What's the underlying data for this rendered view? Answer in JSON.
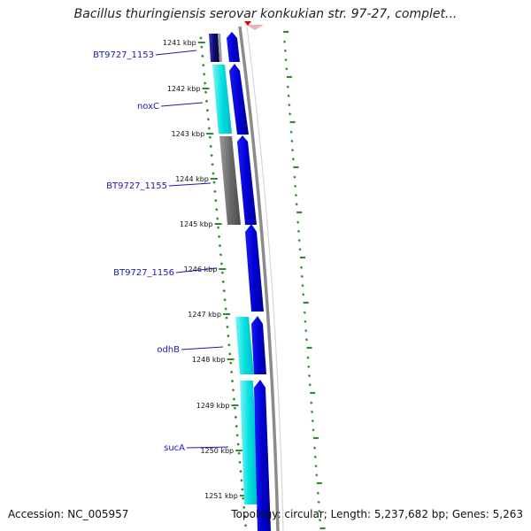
{
  "title": "Bacillus thuringiensis serovar konkukian str. 97-27, complet...",
  "accession_label": "Accession: NC_005957",
  "summary_label": "Topology: circular; Length: 5,237,682 bp; Genes: 5,263",
  "kbp_labels": [
    "1241 kbp",
    "1242 kbp",
    "1243 kbp",
    "1244 kbp",
    "1245 kbp",
    "1246 kbp",
    "1247 kbp",
    "1248 kbp",
    "1249 kbp",
    "1250 kbp",
    "1251 kbp"
  ],
  "gene_labels": [
    "BT9727_1153",
    "noxC",
    "BT9727_1155",
    "BT9727_1156",
    "odhB",
    "sucA"
  ],
  "colors": {
    "forward_strand": "#0000e8",
    "cog_cyan": "#00e6e6",
    "cog_gray": "#707070",
    "backbone": "#8c8c8c",
    "tick_green": "#2e8b2e",
    "label_blue": "#1a1ab0"
  }
}
